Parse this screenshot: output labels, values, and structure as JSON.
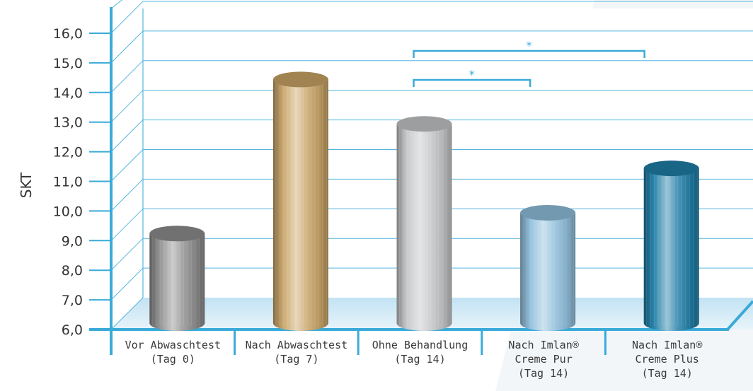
{
  "chart_data": {
    "type": "bar",
    "style": "3d-cylinder",
    "ylabel": "SKT",
    "ylim": [
      6.0,
      16.0
    ],
    "yticks": [
      "6,0",
      "7,0",
      "8,0",
      "9,0",
      "10,0",
      "11,0",
      "12,0",
      "13,0",
      "14,0",
      "15,0",
      "16,0"
    ],
    "grid": true,
    "categories": [
      {
        "lines": [
          "Vor Abwaschtest",
          "(Tag 0)"
        ]
      },
      {
        "lines": [
          "Nach Abwaschtest",
          "(Tag 7)"
        ]
      },
      {
        "lines": [
          "Ohne Behandlung",
          "(Tag 14)"
        ]
      },
      {
        "lines": [
          "Nach Imlan®",
          "Creme Pur",
          "(Tag 14)"
        ]
      },
      {
        "lines": [
          "Nach Imlan®",
          "Creme Plus",
          "(Tag 14)"
        ]
      }
    ],
    "values": [
      9.0,
      14.2,
      12.7,
      9.7,
      11.2
    ],
    "bar_colors": [
      "#8d8d8d",
      "#c9a467",
      "#c4c6c8",
      "#8fbfdc",
      "#1f7ea7"
    ],
    "significance": [
      {
        "from": 2,
        "to": 3,
        "label": "*"
      },
      {
        "from": 2,
        "to": 4,
        "label": "*"
      }
    ],
    "colors": {
      "axis": "#3aaad8",
      "grid": "#55b6e0",
      "floor": "#d6ecf7"
    }
  }
}
